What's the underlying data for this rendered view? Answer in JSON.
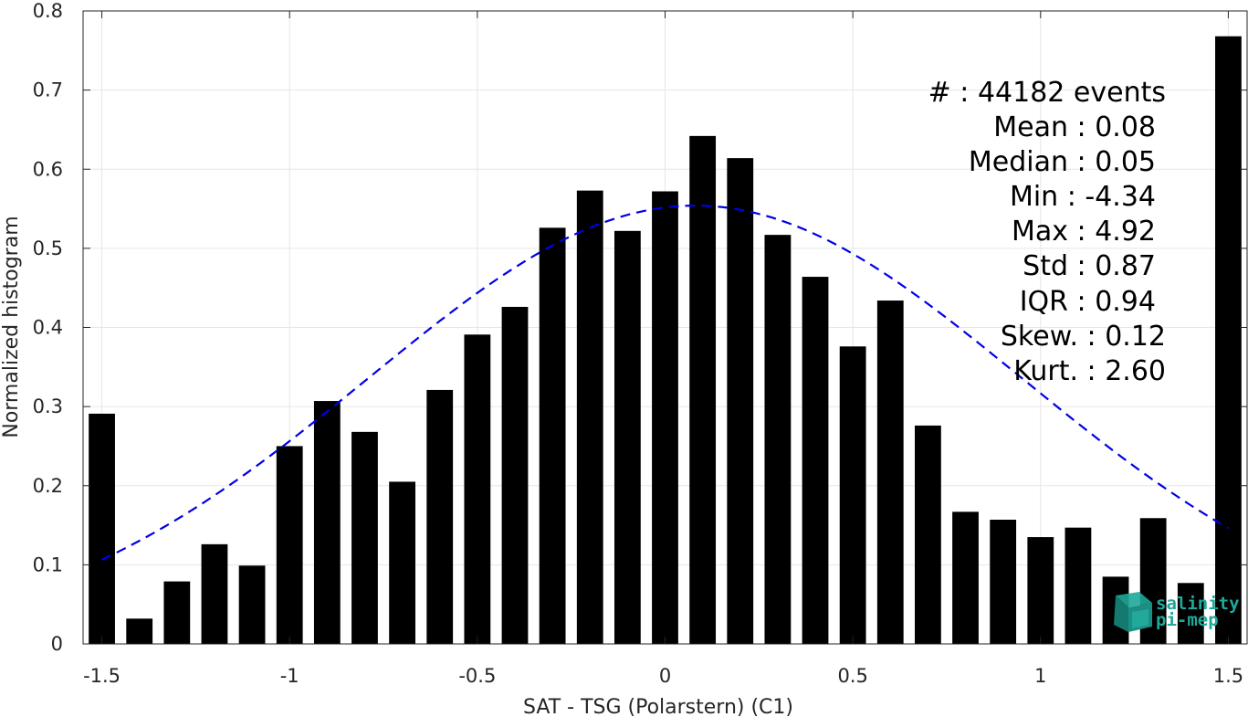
{
  "colors": {
    "bar": "#000000",
    "fit_curve": "#0000e6",
    "grid": "#e6e6e6",
    "axis": "#262626",
    "logo": "#1fa89a"
  },
  "logo": {
    "line1": "salinity",
    "line2": "pi-mep",
    "icon": "cube-stack-icon"
  },
  "stats": [
    {
      "label": "#  : 44182 events"
    },
    {
      "label": "Mean : 0.08"
    },
    {
      "label": "Median : 0.05"
    },
    {
      "label": "Min : -4.34"
    },
    {
      "label": "Max : 4.92"
    },
    {
      "label": "Std : 0.87"
    },
    {
      "label": "IQR : 0.94"
    },
    {
      "label": "Skew. : 0.12"
    },
    {
      "label": "Kurt. : 2.60"
    }
  ],
  "chart_data": {
    "type": "bar",
    "xlabel": "SAT - TSG (Polarstern) (C1)",
    "ylabel": "Normalized histogram",
    "xlim": [
      -1.55,
      1.55
    ],
    "ylim": [
      0,
      0.8
    ],
    "grid": true,
    "x_ticks": [
      -1.5,
      -1,
      -0.5,
      0,
      0.5,
      1,
      1.5
    ],
    "x_tick_labels": [
      "-1.5",
      "-1",
      "-0.5",
      "0",
      "0.5",
      "1",
      "1.5"
    ],
    "y_ticks": [
      0,
      0.1,
      0.2,
      0.3,
      0.4,
      0.5,
      0.6,
      0.7,
      0.8
    ],
    "y_tick_labels": [
      "0",
      "0.1",
      "0.2",
      "0.3",
      "0.4",
      "0.5",
      "0.6",
      "0.7",
      "0.8"
    ],
    "bar_width": 0.07,
    "x": [
      -1.5,
      -1.4,
      -1.3,
      -1.2,
      -1.1,
      -1.0,
      -0.9,
      -0.8,
      -0.7,
      -0.6,
      -0.5,
      -0.4,
      -0.3,
      -0.2,
      -0.1,
      0.0,
      0.1,
      0.2,
      0.3,
      0.4,
      0.5,
      0.6,
      0.7,
      0.8,
      0.9,
      1.0,
      1.1,
      1.2,
      1.3,
      1.4,
      1.5
    ],
    "values": [
      0.291,
      0.032,
      0.079,
      0.126,
      0.099,
      0.25,
      0.307,
      0.268,
      0.205,
      0.321,
      0.391,
      0.426,
      0.526,
      0.573,
      0.522,
      0.572,
      0.642,
      0.614,
      0.517,
      0.464,
      0.376,
      0.434,
      0.276,
      0.167,
      0.157,
      0.135,
      0.147,
      0.085,
      0.159,
      0.077,
      0.768
    ],
    "fit": {
      "type": "gaussian",
      "mean": 0.08,
      "std": 0.87,
      "peak": 0.554,
      "x_range": [
        -1.5,
        1.5
      ],
      "style": "dashed"
    }
  }
}
